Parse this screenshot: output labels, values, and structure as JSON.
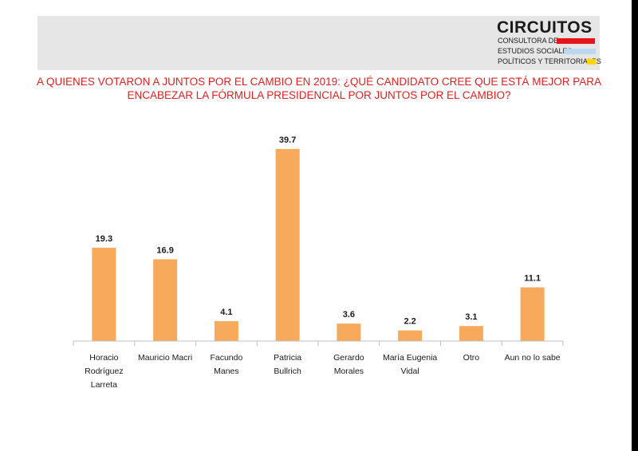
{
  "logo": {
    "name": "CIRCUITOS",
    "line1": "CONSULTORA DE",
    "line2": "ESTUDIOS SOCIALES,",
    "line3": "POLÍTICOS Y TERRITORIALES",
    "colors": [
      "#e8141c",
      "#bcd8ee",
      "#ffd700"
    ]
  },
  "title": "A QUIENES VOTARON A JUNTOS POR EL CAMBIO EN 2019: ¿QUÉ CANDIDATO CREE QUE ESTÁ MEJOR PARA ENCABEZAR LA FÓRMULA PRESIDENCIAL POR JUNTOS POR EL CAMBIO?",
  "colors": {
    "bar": "#f7a95c",
    "title": "#e02020"
  },
  "chart_data": {
    "type": "bar",
    "title": "A QUIENES VOTARON A JUNTOS POR EL CAMBIO EN 2019: ¿QUÉ CANDIDATO CREE QUE ESTÁ MEJOR PARA ENCABEZAR LA FÓRMULA PRESIDENCIAL POR JUNTOS POR EL CAMBIO?",
    "categories": [
      "Horacio Rodríguez Larreta",
      "Mauricio Macri",
      "Facundo Manes",
      "Patricia Bullrich",
      "Gerardo Morales",
      "María Eugenia Vidal",
      "Otro",
      "Aun no lo sabe"
    ],
    "category_lines": [
      [
        "Horacio",
        "Rodríguez",
        "Larreta"
      ],
      [
        "Mauricio Macri"
      ],
      [
        "Facundo",
        "Manes"
      ],
      [
        "Patricia",
        "Bullrich"
      ],
      [
        "Gerardo",
        "Morales"
      ],
      [
        "María Eugenia",
        "Vidal"
      ],
      [
        "Otro"
      ],
      [
        "Aun no lo sabe"
      ]
    ],
    "values": [
      19.3,
      16.9,
      4.1,
      39.7,
      3.6,
      2.2,
      3.1,
      11.1
    ],
    "value_labels": [
      "19.3",
      "16.9",
      "4.1",
      "39.7",
      "3.6",
      "2.2",
      "3.1",
      "11.1"
    ],
    "xlabel": "",
    "ylabel": "",
    "ylim": [
      0,
      40
    ],
    "grid": false,
    "legend": "none"
  }
}
